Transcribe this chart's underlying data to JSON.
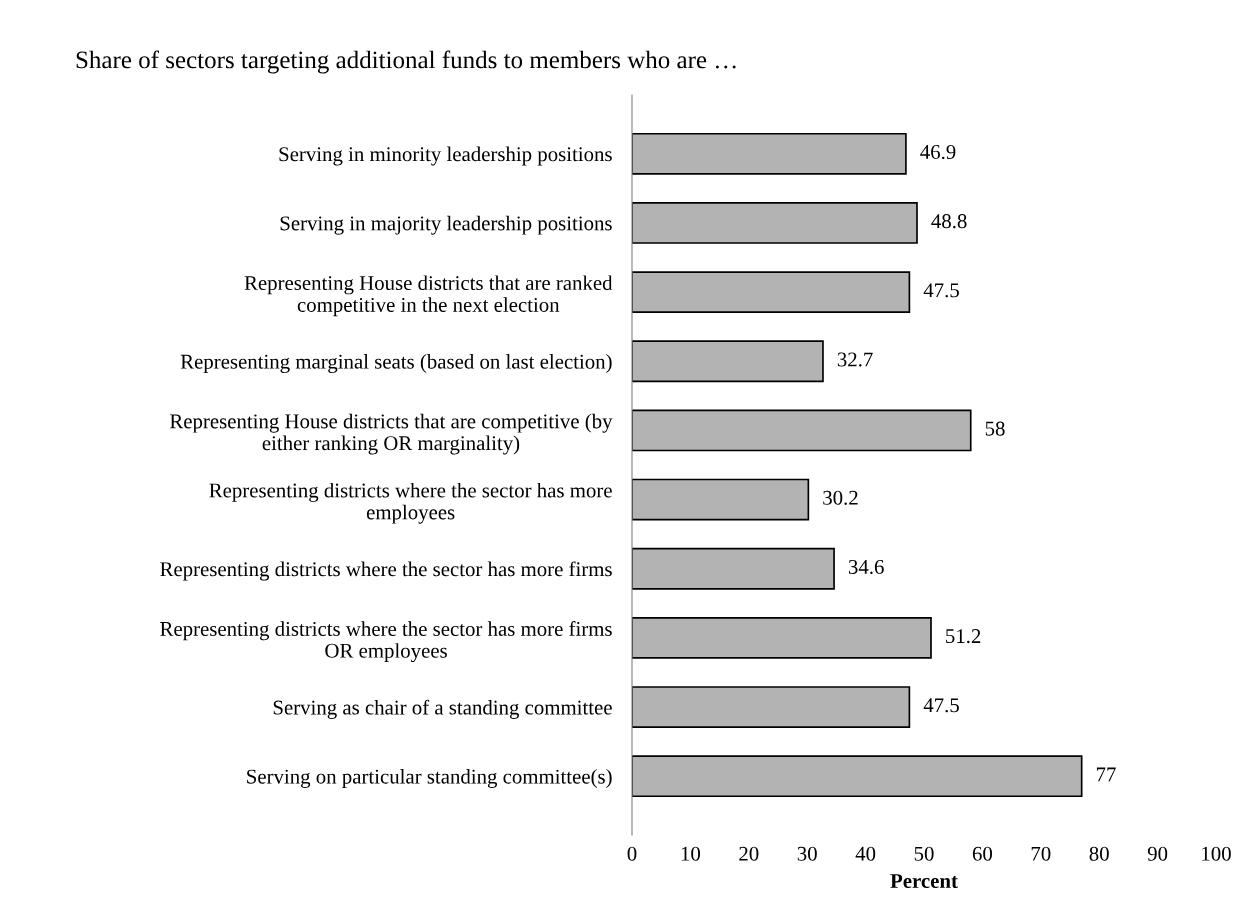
{
  "chart_data": {
    "type": "bar",
    "orientation": "horizontal",
    "title": "Share of sectors targeting additional funds to members who are …",
    "xlabel": "Percent",
    "categories": [
      "Serving in minority leadership positions",
      "Serving in majority leadership positions",
      "Representing House districts that are ranked\ncompetitive in the next election",
      "Representing marginal seats (based on last election)",
      "Representing House districts that are competitive (by\neither ranking OR marginality)",
      "Representing districts where the sector has more\nemployees",
      "Representing districts where the sector has more firms",
      "Representing districts where the sector has more firms\nOR employees",
      "Serving as chair of a standing committee",
      "Serving on particular standing committee(s)"
    ],
    "values": [
      46.9,
      48.8,
      47.5,
      32.7,
      58,
      30.2,
      34.6,
      51.2,
      47.5,
      77
    ],
    "color": "#b3b3b3",
    "xlim": [
      0,
      100
    ],
    "xticks": [
      0,
      10,
      20,
      30,
      40,
      50,
      60,
      70,
      80,
      90,
      100
    ],
    "data_labels": true,
    "grid": false,
    "legend": false
  }
}
